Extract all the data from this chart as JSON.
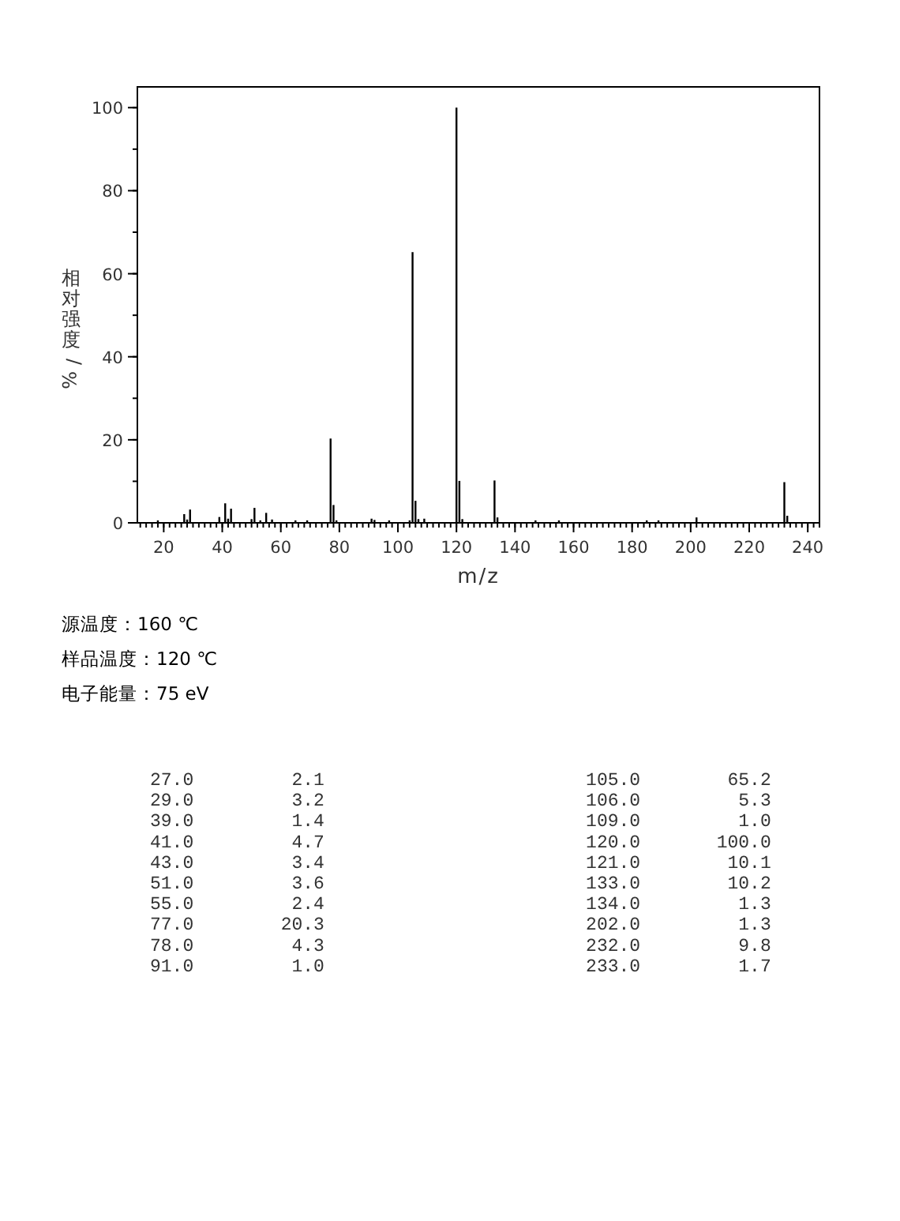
{
  "chart_data": {
    "type": "bar",
    "xlabel": "m/z",
    "ylabel": "相对强度/%",
    "x": [
      18,
      27,
      28,
      29,
      39,
      41,
      42,
      43,
      50,
      51,
      53,
      55,
      57,
      65,
      69,
      77,
      78,
      79,
      91,
      92,
      97,
      104,
      105,
      106,
      107,
      109,
      120,
      121,
      122,
      133,
      134,
      147,
      155,
      185,
      189,
      202,
      232,
      233
    ],
    "values": [
      0.6,
      2.1,
      0.8,
      3.2,
      1.4,
      4.7,
      1.0,
      3.4,
      0.9,
      3.6,
      0.6,
      2.4,
      0.8,
      0.6,
      0.6,
      20.3,
      4.3,
      0.6,
      1.0,
      0.7,
      0.6,
      0.6,
      65.2,
      5.3,
      0.9,
      1.0,
      100.0,
      10.1,
      0.9,
      10.2,
      1.3,
      0.6,
      0.6,
      0.6,
      0.6,
      1.3,
      9.8,
      1.7
    ],
    "color": "#000000",
    "xlim": [
      11,
      244
    ],
    "xticks": [
      20,
      40,
      60,
      80,
      100,
      120,
      140,
      160,
      180,
      200,
      220,
      240
    ],
    "ylim": [
      0,
      105
    ],
    "yticks": [
      0,
      20,
      40,
      60,
      80,
      100
    ],
    "annotations": [
      "源温度：160 ℃",
      "样品温度：120 ℃",
      "电子能量：75 eV",
      "27.0         2.1                        105.0        65.2",
      "29.0         3.2                        106.0         5.3",
      "39.0         1.4                        109.0         1.0",
      "41.0         4.7                        120.0       100.0",
      "43.0         3.4                        121.0        10.1",
      "51.0         3.6                        133.0        10.2",
      "55.0         2.4                        134.0         1.3",
      "77.0        20.3                        202.0         1.3",
      "78.0         4.3                        232.0         9.8",
      "91.0         1.0                        233.0         1.7"
    ]
  }
}
